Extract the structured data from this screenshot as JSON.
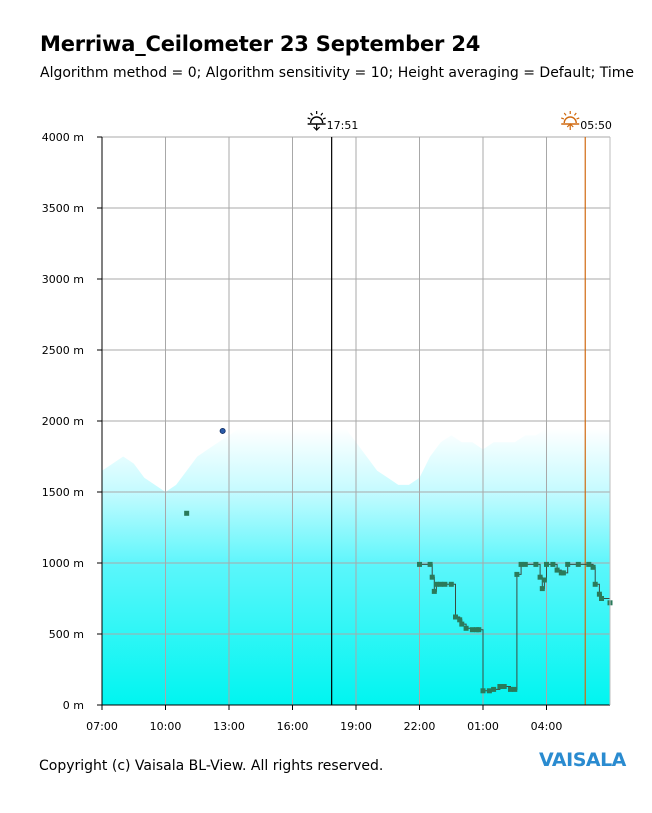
{
  "title": "Merriwa_Ceilometer 23 September 24",
  "subtitle": "Algorithm method = 0; Algorithm sensitivity = 10; Height averaging = Default; Time",
  "footer": "Copyright (c) Vaisala BL-View. All rights reserved.",
  "brand": "VAISALA",
  "colors": {
    "backscatter": "#00f5f0",
    "mixing_height": "#2a7a5a",
    "trace": "#3a4a40",
    "sunset_line": "#000000",
    "sunrise_line": "#d06a10",
    "grid": "#a8a8a8"
  },
  "chart_data": {
    "type": "heatmap",
    "y_ticks": [
      "0 m",
      "500 m",
      "1000 m",
      "1500 m",
      "2000 m",
      "2500 m",
      "3000 m",
      "3500 m",
      "4000 m"
    ],
    "x_ticks": [
      "07:00",
      "10:00",
      "13:00",
      "16:00",
      "19:00",
      "22:00",
      "01:00",
      "04:00"
    ],
    "y_range": [
      0,
      4000
    ],
    "x_range_hours": [
      0,
      24
    ],
    "grid": true,
    "markers": [
      {
        "label": "17:51",
        "icon": "sunset-icon",
        "hour": 10.85
      },
      {
        "label": "05:50",
        "icon": "sunrise-icon",
        "hour": 22.83
      }
    ],
    "backscatter_top": [
      [
        0,
        1650
      ],
      [
        0.5,
        1700
      ],
      [
        1.0,
        1750
      ],
      [
        1.5,
        1700
      ],
      [
        2.0,
        1600
      ],
      [
        2.5,
        1550
      ],
      [
        3.0,
        1500
      ],
      [
        3.5,
        1550
      ],
      [
        4.0,
        1650
      ],
      [
        4.5,
        1750
      ],
      [
        5.0,
        1800
      ],
      [
        5.5,
        1850
      ],
      [
        6.0,
        1900
      ],
      [
        6.5,
        1950
      ],
      [
        7.0,
        1950
      ],
      [
        7.5,
        1950
      ],
      [
        8.0,
        1950
      ],
      [
        8.5,
        1950
      ],
      [
        9.0,
        1950
      ],
      [
        9.5,
        1950
      ],
      [
        10.0,
        1950
      ],
      [
        10.5,
        1950
      ],
      [
        11.0,
        1950
      ],
      [
        11.5,
        1950
      ],
      [
        12.0,
        1850
      ],
      [
        12.5,
        1750
      ],
      [
        13.0,
        1650
      ],
      [
        13.5,
        1600
      ],
      [
        14.0,
        1550
      ],
      [
        14.5,
        1550
      ],
      [
        15.0,
        1600
      ],
      [
        15.5,
        1750
      ],
      [
        16.0,
        1850
      ],
      [
        16.5,
        1900
      ],
      [
        17.0,
        1850
      ],
      [
        17.5,
        1850
      ],
      [
        18.0,
        1800
      ],
      [
        18.5,
        1850
      ],
      [
        19.0,
        1850
      ],
      [
        19.5,
        1850
      ],
      [
        20.0,
        1900
      ],
      [
        20.5,
        1900
      ],
      [
        21.0,
        1950
      ],
      [
        21.5,
        1950
      ],
      [
        22.0,
        1950
      ],
      [
        22.5,
        1950
      ],
      [
        23.0,
        1950
      ],
      [
        23.5,
        1950
      ],
      [
        24.0,
        1950
      ]
    ],
    "mixing_height": [
      [
        15.0,
        990
      ],
      [
        15.5,
        990
      ],
      [
        15.6,
        900
      ],
      [
        15.7,
        800
      ],
      [
        15.8,
        850
      ],
      [
        16.0,
        850
      ],
      [
        16.2,
        850
      ],
      [
        16.5,
        850
      ],
      [
        16.7,
        620
      ],
      [
        16.9,
        600
      ],
      [
        17.0,
        570
      ],
      [
        17.2,
        540
      ],
      [
        17.5,
        530
      ],
      [
        17.7,
        530
      ],
      [
        17.8,
        530
      ],
      [
        18.0,
        100
      ],
      [
        18.3,
        100
      ],
      [
        18.5,
        110
      ],
      [
        18.8,
        130
      ],
      [
        19.0,
        130
      ],
      [
        19.3,
        110
      ],
      [
        19.5,
        110
      ],
      [
        19.6,
        920
      ],
      [
        19.8,
        990
      ],
      [
        20.0,
        990
      ],
      [
        20.5,
        990
      ],
      [
        20.7,
        900
      ],
      [
        20.8,
        820
      ],
      [
        20.9,
        880
      ],
      [
        21.0,
        990
      ],
      [
        21.3,
        990
      ],
      [
        21.5,
        950
      ],
      [
        21.7,
        930
      ],
      [
        21.8,
        930
      ],
      [
        22.0,
        990
      ],
      [
        22.5,
        990
      ],
      [
        23.0,
        990
      ],
      [
        23.2,
        970
      ],
      [
        23.3,
        850
      ],
      [
        23.5,
        780
      ],
      [
        23.6,
        750
      ],
      [
        24.0,
        720
      ]
    ],
    "isolated_points": [
      {
        "hour": 4.0,
        "height": 1350
      },
      {
        "hour": 5.7,
        "height": 1930
      }
    ]
  }
}
